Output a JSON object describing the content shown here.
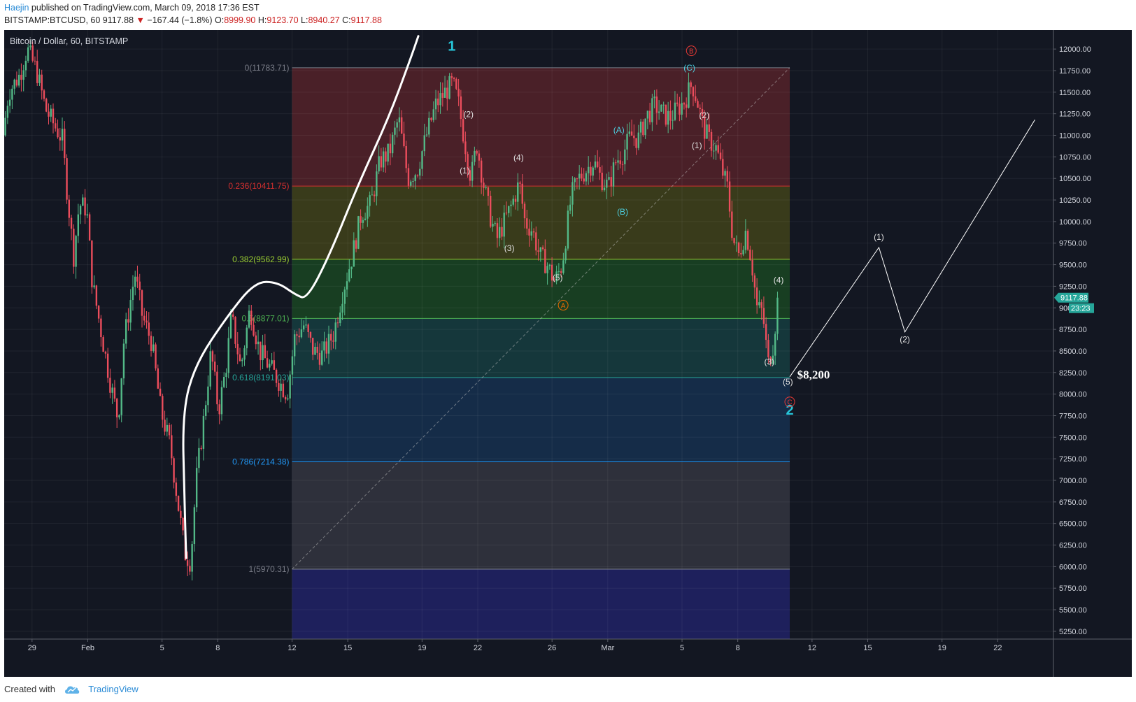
{
  "header": {
    "author": "Haejin",
    "published_text": " published on TradingView.com, March 09, 2018 17:36 EST",
    "symbol_line": "BITSTAMP:BTCUSD, 60",
    "last": "9117.88",
    "change": "−167.44 (−1.8%)",
    "o_label": "O:",
    "o_val": "8999.90",
    "h_label": "H:",
    "h_val": "9123.70",
    "l_label": "L:",
    "l_val": "8940.27",
    "c_label": "C:",
    "c_val": "9117.88"
  },
  "chart_data": {
    "type": "candlestick",
    "title": "Bitcoin / Dollar, 60, BITSTAMP",
    "y_axis": {
      "ticks": [
        5250,
        5500,
        5750,
        6000,
        6250,
        6500,
        6750,
        7000,
        7250,
        7500,
        7750,
        8000,
        8250,
        8500,
        8750,
        9000,
        9250,
        9500,
        9750,
        10000,
        10250,
        10500,
        10750,
        11000,
        11250,
        11500,
        11750,
        12000
      ],
      "tick_labels": [
        "5250.00",
        "5500.00",
        "5750.00",
        "6000.00",
        "6250.00",
        "6500.00",
        "6750.00",
        "7000.00",
        "7250.00",
        "7500.00",
        "7750.00",
        "8000.00",
        "8250.00",
        "8500.00",
        "8750.00",
        "9000.00",
        "9250.00",
        "9500.00",
        "9750.00",
        "10000.00",
        "10250.00",
        "10500.00",
        "10750.00",
        "11000.00",
        "11250.00",
        "11500.00",
        "11750.00",
        "12000.00"
      ],
      "range": [
        5160,
        12220
      ]
    },
    "x_axis": {
      "tick_labels": [
        "29",
        "Feb",
        "5",
        "8",
        "12",
        "15",
        "19",
        "22",
        "26",
        "Mar",
        "5",
        "8",
        "12",
        "15",
        "19",
        "22"
      ],
      "tick_days": [
        -3,
        0,
        4,
        7,
        11,
        14,
        18,
        21,
        25,
        28,
        32,
        35,
        39,
        42,
        46,
        49
      ],
      "day_zero": "2018-02-01",
      "range_days": [
        -4.5,
        52
      ]
    },
    "price_path": [
      [
        -4.5,
        11000
      ],
      [
        -4.2,
        11500
      ],
      [
        -3.6,
        11700
      ],
      [
        -3.2,
        12000
      ],
      [
        -2.7,
        11750
      ],
      [
        -2.2,
        11300
      ],
      [
        -1.7,
        11100
      ],
      [
        -1.3,
        10950
      ],
      [
        -1.1,
        10450
      ],
      [
        -0.7,
        9600
      ],
      [
        -0.4,
        10200
      ],
      [
        0,
        10150
      ],
      [
        0.3,
        9300
      ],
      [
        0.8,
        8700
      ],
      [
        1.3,
        8100
      ],
      [
        1.7,
        7700
      ],
      [
        2.0,
        8600
      ],
      [
        2.6,
        9400
      ],
      [
        3.0,
        8900
      ],
      [
        3.5,
        8600
      ],
      [
        4.0,
        7800
      ],
      [
        4.5,
        7400
      ],
      [
        5.0,
        6600
      ],
      [
        5.3,
        6150
      ],
      [
        5.6,
        6050
      ],
      [
        5.9,
        7000
      ],
      [
        6.3,
        7700
      ],
      [
        6.7,
        8500
      ],
      [
        7.1,
        7800
      ],
      [
        7.5,
        8300
      ],
      [
        7.8,
        8900
      ],
      [
        8.3,
        8300
      ],
      [
        8.8,
        9000
      ],
      [
        9.3,
        8500
      ],
      [
        10.2,
        8200
      ],
      [
        10.8,
        8000
      ],
      [
        11.2,
        8650
      ],
      [
        11.7,
        8800
      ],
      [
        12.2,
        8500
      ],
      [
        12.7,
        8450
      ],
      [
        13.3,
        8700
      ],
      [
        13.8,
        9200
      ],
      [
        14.3,
        9600
      ],
      [
        14.8,
        10100
      ],
      [
        15.3,
        10200
      ],
      [
        15.8,
        10700
      ],
      [
        16.3,
        10800
      ],
      [
        16.8,
        11200
      ],
      [
        17.3,
        10500
      ],
      [
        17.8,
        10600
      ],
      [
        18.3,
        11000
      ],
      [
        18.8,
        11350
      ],
      [
        19.3,
        11500
      ],
      [
        19.7,
        11600
      ],
      [
        20.0,
        11400
      ],
      [
        20.3,
        11000
      ],
      [
        20.7,
        10500
      ],
      [
        21.0,
        10900
      ],
      [
        21.4,
        10400
      ],
      [
        21.8,
        10000
      ],
      [
        22.1,
        9800
      ],
      [
        22.5,
        10000
      ],
      [
        22.9,
        10200
      ],
      [
        23.3,
        10450
      ],
      [
        23.6,
        10000
      ],
      [
        24.0,
        9900
      ],
      [
        24.4,
        9600
      ],
      [
        24.8,
        9500
      ],
      [
        25.2,
        9300
      ],
      [
        25.6,
        9500
      ],
      [
        26.1,
        10300
      ],
      [
        26.5,
        10500
      ],
      [
        26.9,
        10600
      ],
      [
        27.3,
        10700
      ],
      [
        27.7,
        10500
      ],
      [
        28.1,
        10400
      ],
      [
        28.5,
        10700
      ],
      [
        28.9,
        10800
      ],
      [
        29.3,
        11000
      ],
      [
        29.7,
        10950
      ],
      [
        30.1,
        11200
      ],
      [
        30.6,
        11350
      ],
      [
        31.0,
        11250
      ],
      [
        31.4,
        11200
      ],
      [
        31.8,
        11300
      ],
      [
        32.2,
        11400
      ],
      [
        32.6,
        11600
      ],
      [
        32.9,
        11380
      ],
      [
        33.2,
        11100
      ],
      [
        33.5,
        10950
      ],
      [
        33.9,
        10850
      ],
      [
        34.2,
        10600
      ],
      [
        34.5,
        10400
      ],
      [
        34.8,
        9800
      ],
      [
        35.1,
        9600
      ],
      [
        35.5,
        9900
      ],
      [
        35.8,
        9550
      ],
      [
        36.1,
        9000
      ],
      [
        36.4,
        8950
      ],
      [
        36.7,
        8350
      ],
      [
        37.0,
        8600
      ],
      [
        37.2,
        9117.88
      ]
    ],
    "fibonacci": {
      "x_range_days": [
        11,
        37.8
      ],
      "levels": [
        {
          "ratio": 0,
          "label": "0(11783.71)",
          "price": 11783.71,
          "color": "#787b86",
          "fill": "rgba(120,40,45,0.55)"
        },
        {
          "ratio": 0.236,
          "label": "0.236(10411.75)",
          "price": 10411.75,
          "color": "#d32f2f",
          "fill": "rgba(95,95,20,0.50)"
        },
        {
          "ratio": 0.382,
          "label": "0.382(9562.99)",
          "price": 9562.99,
          "color": "#9acd32",
          "fill": "rgba(30,95,35,0.55)"
        },
        {
          "ratio": 0.5,
          "label": "0.5(8877.01)",
          "price": 8877.01,
          "color": "#4caf50",
          "fill": "rgba(25,95,90,0.45)"
        },
        {
          "ratio": 0.618,
          "label": "0.618(8191.03)",
          "price": 8191.03,
          "color": "#26a69a",
          "fill": "rgba(25,70,120,0.45)"
        },
        {
          "ratio": 0.786,
          "label": "0.786(7214.38)",
          "price": 7214.38,
          "color": "#2196f3",
          "fill": "rgba(80,80,90,0.45)"
        },
        {
          "ratio": 1,
          "label": "1(5970.31)",
          "price": 5970.31,
          "color": "#787b86",
          "fill": "rgba(40,40,140,0.55)"
        }
      ]
    },
    "annotations": [
      {
        "text": "1",
        "day": 19.6,
        "price": 11980,
        "color": "#26c6da",
        "size": "big"
      },
      {
        "text": "2",
        "day": 37.8,
        "price": 7760,
        "color": "#26c6da",
        "size": "big"
      },
      {
        "text": "(2)",
        "day": 20.5,
        "price": 11210,
        "color": "#e0e0e0",
        "size": "small"
      },
      {
        "text": "(1)",
        "day": 20.3,
        "price": 10560,
        "color": "#e0e0e0",
        "size": "small"
      },
      {
        "text": "(4)",
        "day": 23.2,
        "price": 10710,
        "color": "#e0e0e0",
        "size": "small"
      },
      {
        "text": "(3)",
        "day": 22.7,
        "price": 9660,
        "color": "#e0e0e0",
        "size": "small"
      },
      {
        "text": "(5)",
        "day": 25.3,
        "price": 9320,
        "color": "#e0e0e0",
        "size": "small"
      },
      {
        "text": "(A)",
        "day": 28.6,
        "price": 11030,
        "color": "#4dd0e1",
        "size": "small"
      },
      {
        "text": "(B)",
        "day": 28.8,
        "price": 10080,
        "color": "#4dd0e1",
        "size": "small"
      },
      {
        "text": "(C)",
        "day": 32.4,
        "price": 11750,
        "color": "#4dd0e1",
        "size": "small"
      },
      {
        "text": "(2)",
        "day": 33.2,
        "price": 11200,
        "color": "#e0e0e0",
        "size": "small"
      },
      {
        "text": "(1)",
        "day": 32.8,
        "price": 10850,
        "color": "#e0e0e0",
        "size": "small"
      },
      {
        "text": "(4)",
        "day": 37.2,
        "price": 9290,
        "color": "#e0e0e0",
        "size": "small"
      },
      {
        "text": "(3)",
        "day": 36.7,
        "price": 8340,
        "color": "#e0e0e0",
        "size": "small"
      },
      {
        "text": "(5)",
        "day": 37.7,
        "price": 8110,
        "color": "#e0e0e0",
        "size": "small"
      },
      {
        "text": "(1)",
        "day": 42.6,
        "price": 9790,
        "color": "#e0e0e0",
        "size": "small"
      },
      {
        "text": "(2)",
        "day": 44.0,
        "price": 8600,
        "color": "#e0e0e0",
        "size": "small"
      },
      {
        "text": "$8,200",
        "day": 38.2,
        "price": 8180,
        "color": "#ffffff",
        "size": "price"
      }
    ],
    "circled_labels": [
      {
        "text": "B",
        "day": 32.5,
        "price": 11980,
        "color": "#e53935"
      },
      {
        "text": "A",
        "day": 25.6,
        "price": 9030,
        "color": "#ef6c00"
      },
      {
        "text": "C",
        "day": 37.8,
        "price": 7910,
        "color": "#e53935"
      }
    ],
    "projection_path": [
      [
        37.8,
        8200
      ],
      [
        42.6,
        9700
      ],
      [
        44.0,
        8720
      ],
      [
        51.0,
        11180
      ]
    ],
    "trend_arc": [
      [
        5.3,
        6100
      ],
      [
        5.2,
        6800
      ],
      [
        5.1,
        7800
      ],
      [
        5.8,
        8350
      ],
      [
        7.5,
        8900
      ],
      [
        9.0,
        9300
      ],
      [
        10.2,
        9300
      ],
      [
        11.2,
        9150
      ],
      [
        11.8,
        9100
      ],
      [
        13.0,
        9600
      ],
      [
        14.6,
        10450
      ],
      [
        16.2,
        11200
      ],
      [
        17.4,
        11900
      ],
      [
        17.8,
        12150
      ]
    ],
    "diagonal": [
      [
        11,
        5970.31
      ],
      [
        37.8,
        11783.71
      ]
    ],
    "last_price_label": "9117.88",
    "countdown_label": "23:23",
    "partial_axis_label": "90"
  },
  "footer": {
    "created_with": "Created with",
    "brand": "TradingView"
  }
}
